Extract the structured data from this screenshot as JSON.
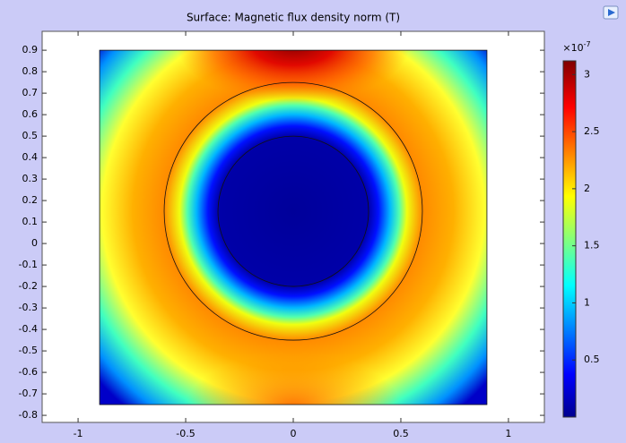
{
  "chart_data": {
    "type": "surface",
    "title": "Surface: Magnetic flux density norm (T)",
    "xlim": [
      -1.167,
      1.167
    ],
    "ylim": [
      -0.833,
      0.988
    ],
    "xticks": [
      -1,
      -0.5,
      0,
      0.5,
      1
    ],
    "yticks": [
      -0.8,
      -0.7,
      -0.6,
      -0.5,
      -0.4,
      -0.3,
      -0.2,
      -0.1,
      0,
      0.1,
      0.2,
      0.3,
      0.4,
      0.5,
      0.6,
      0.7,
      0.8,
      0.9
    ],
    "domain": {
      "x": [
        -0.9,
        0.9
      ],
      "y": [
        -0.75,
        0.9
      ]
    },
    "circles": [
      {
        "cx": 0,
        "cy": 0.15,
        "r": 0.6
      },
      {
        "cx": 0,
        "cy": 0.15,
        "r": 0.35
      }
    ],
    "colorbar": {
      "clim": [
        0.0,
        3.12
      ],
      "ticks": [
        0.5,
        1,
        1.5,
        2,
        2.5,
        3
      ],
      "multiplier": "×10",
      "exponent": "-7"
    }
  }
}
